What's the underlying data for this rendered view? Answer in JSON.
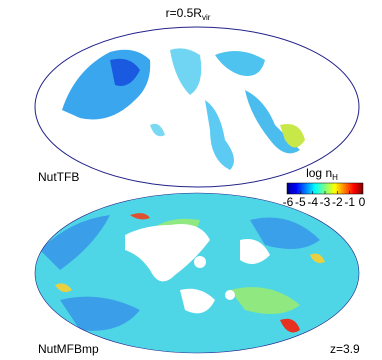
{
  "title": {
    "main": "r=0.5R",
    "sub": "vir"
  },
  "panels": [
    {
      "label": "NutTFB"
    },
    {
      "label": "NutMFBmp",
      "redshift": "z=3.9"
    }
  ],
  "colorbar": {
    "label": {
      "main": "log n",
      "sub": "H"
    },
    "lim": [
      -6,
      0
    ],
    "ticks": [
      -6,
      -5,
      -4,
      -3,
      -2,
      -1,
      0
    ]
  }
}
